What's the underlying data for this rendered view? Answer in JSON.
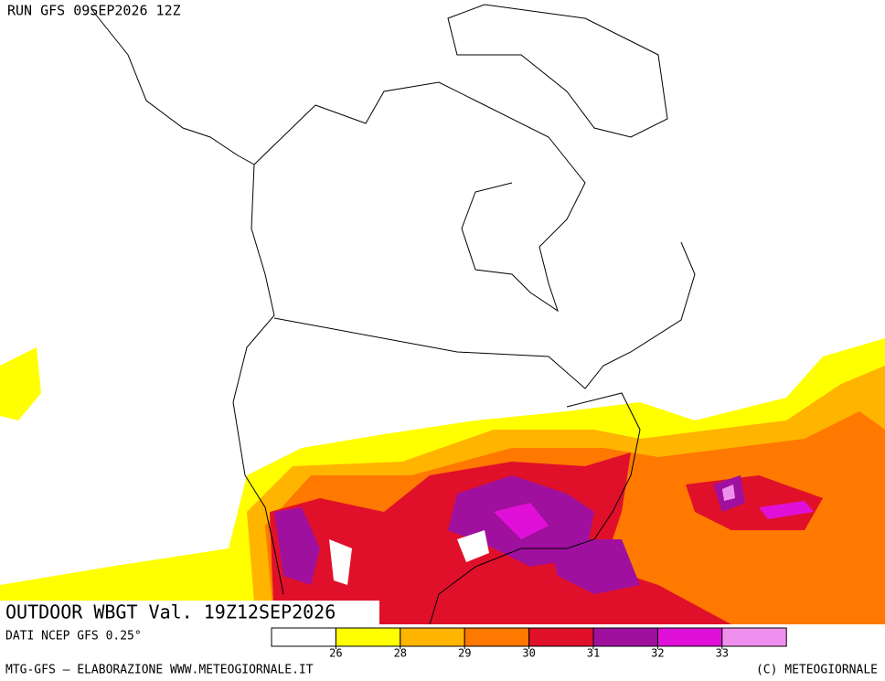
{
  "header": {
    "run": "RUN GFS 09SEP2026 12Z"
  },
  "title": "OUTDOOR WBGT Val. 19Z12SEP2026",
  "source": "DATI NCEP GFS 0.25°",
  "legend": {
    "colors": [
      "#ffffff",
      "#ffff00",
      "#ffb400",
      "#ff7800",
      "#e0102a",
      "#a0109e",
      "#e010d8",
      "#f090ee"
    ],
    "ticks": [
      26,
      28,
      29,
      30,
      31,
      32,
      33
    ]
  },
  "footer": {
    "left": "MTG-GFS — ELABORAZIONE WWW.METEOGIORNALE.IT",
    "right": "(C) METEOGIORNALE"
  }
}
